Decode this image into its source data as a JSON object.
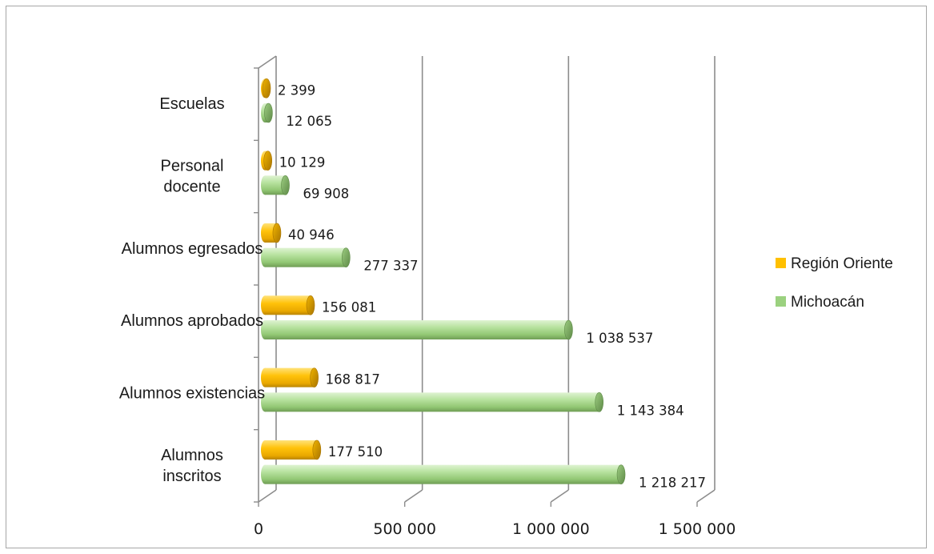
{
  "chart_data": {
    "type": "bar",
    "orientation": "horizontal",
    "three_d": true,
    "categories": [
      "Alumnos inscritos",
      "Alumnos existencias",
      "Alumnos aprobados",
      "Alumnos egresados",
      "Personal docente",
      "Escuelas"
    ],
    "category_lines": [
      [
        "Alumnos",
        "inscritos"
      ],
      [
        "Alumnos existencias"
      ],
      [
        "Alumnos aprobados"
      ],
      [
        "Alumnos egresados"
      ],
      [
        "Personal",
        "docente"
      ],
      [
        "Escuelas"
      ]
    ],
    "series": [
      {
        "name": "Región Oriente",
        "color": "#ffc000",
        "values": [
          177510,
          168817,
          156081,
          40946,
          10129,
          2399
        ],
        "labels": [
          "177 510",
          "168 817",
          "156 081",
          "40 946",
          "10 129",
          "2 399"
        ]
      },
      {
        "name": "Michoacán",
        "color": "#9bd17f",
        "values": [
          1218217,
          1143384,
          1038537,
          277337,
          69908,
          12065
        ],
        "labels": [
          "1 218 217",
          "1 143 384",
          "1 038 537",
          "277 337",
          "69 908",
          "12 065"
        ]
      }
    ],
    "xlim": [
      0,
      1500000
    ],
    "x_ticks": [
      0,
      500000,
      1000000,
      1500000
    ],
    "x_tick_labels": [
      "0",
      "500 000",
      "1 000 000",
      "1 500 000"
    ],
    "grid": "vertical",
    "legend": "right",
    "title": "",
    "xlabel": "",
    "ylabel": ""
  }
}
